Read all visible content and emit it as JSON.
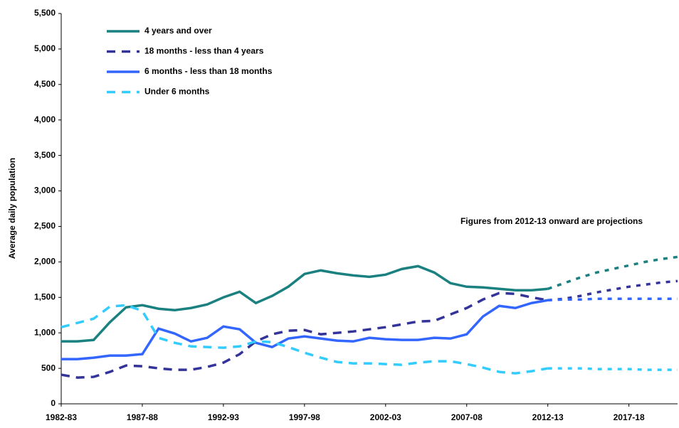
{
  "chart_data": {
    "type": "line",
    "y_label": "Average daily population",
    "annotation": "Figures from 2012-13 onward are projections",
    "projection_from": "2012-13",
    "categories": [
      "1982-83",
      null,
      null,
      null,
      null,
      "1987-88",
      null,
      null,
      null,
      null,
      "1992-93",
      null,
      null,
      null,
      null,
      "1997-98",
      null,
      null,
      null,
      null,
      "2002-03",
      null,
      null,
      null,
      null,
      "2007-08",
      null,
      null,
      null,
      null,
      "2012-13",
      null,
      null,
      null,
      null,
      "2017-18",
      null,
      null,
      null
    ],
    "ylim": [
      0,
      5500
    ],
    "yticks": [
      0,
      500,
      {
        "value": 1000,
        "label": "1,000"
      },
      {
        "value": 1500,
        "label": "1,500"
      },
      {
        "value": 2000,
        "label": "2,000"
      },
      {
        "value": 2500,
        "label": "2,500"
      },
      {
        "value": 3000,
        "label": "3,000"
      },
      {
        "value": 3500,
        "label": "3,500"
      },
      {
        "value": 4000,
        "label": "4,000"
      },
      {
        "value": 4500,
        "label": "4,500"
      },
      {
        "value": 5000,
        "label": "5,000"
      },
      {
        "value": 5500,
        "label": "5,500"
      }
    ],
    "series": [
      {
        "name": "4 years and over",
        "color": "#1a8080",
        "dashed": false,
        "values": [
          880,
          880,
          900,
          1150,
          1360,
          1390,
          1340,
          1320,
          1350,
          1400,
          1500,
          1580,
          1420,
          1520,
          1650,
          1830,
          1880,
          1840,
          1810,
          1790,
          1820,
          1900,
          1940,
          1850,
          1700,
          1650,
          1640,
          1620,
          1600,
          1600,
          1620,
          1700,
          1780,
          1850,
          1900,
          1950,
          2000,
          2040,
          2070
        ]
      },
      {
        "name": "18 months - less than 4 years",
        "color": "#333399",
        "dashed": true,
        "values": [
          410,
          370,
          380,
          450,
          540,
          530,
          500,
          480,
          480,
          520,
          580,
          700,
          880,
          980,
          1030,
          1040,
          980,
          1000,
          1020,
          1050,
          1080,
          1120,
          1160,
          1170,
          1260,
          1350,
          1470,
          1560,
          1550,
          1500,
          1460,
          1480,
          1520,
          1570,
          1610,
          1650,
          1680,
          1710,
          1730
        ]
      },
      {
        "name": "6 months - less than 18 months",
        "color": "#3366ff",
        "dashed": false,
        "values": [
          630,
          630,
          650,
          680,
          680,
          700,
          1060,
          990,
          880,
          930,
          1090,
          1050,
          860,
          800,
          920,
          950,
          920,
          890,
          880,
          930,
          910,
          900,
          900,
          930,
          920,
          980,
          1230,
          1380,
          1350,
          1420,
          1460,
          1470,
          1470,
          1480,
          1480,
          1480,
          1480,
          1480,
          1480
        ]
      },
      {
        "name": "Under 6 months",
        "color": "#33ccff",
        "dashed": true,
        "values": [
          1080,
          1140,
          1200,
          1370,
          1390,
          1310,
          930,
          860,
          810,
          800,
          790,
          810,
          880,
          870,
          800,
          720,
          650,
          590,
          570,
          570,
          560,
          550,
          580,
          600,
          600,
          560,
          510,
          450,
          430,
          460,
          500,
          500,
          500,
          490,
          490,
          490,
          480,
          480,
          480
        ]
      }
    ]
  }
}
